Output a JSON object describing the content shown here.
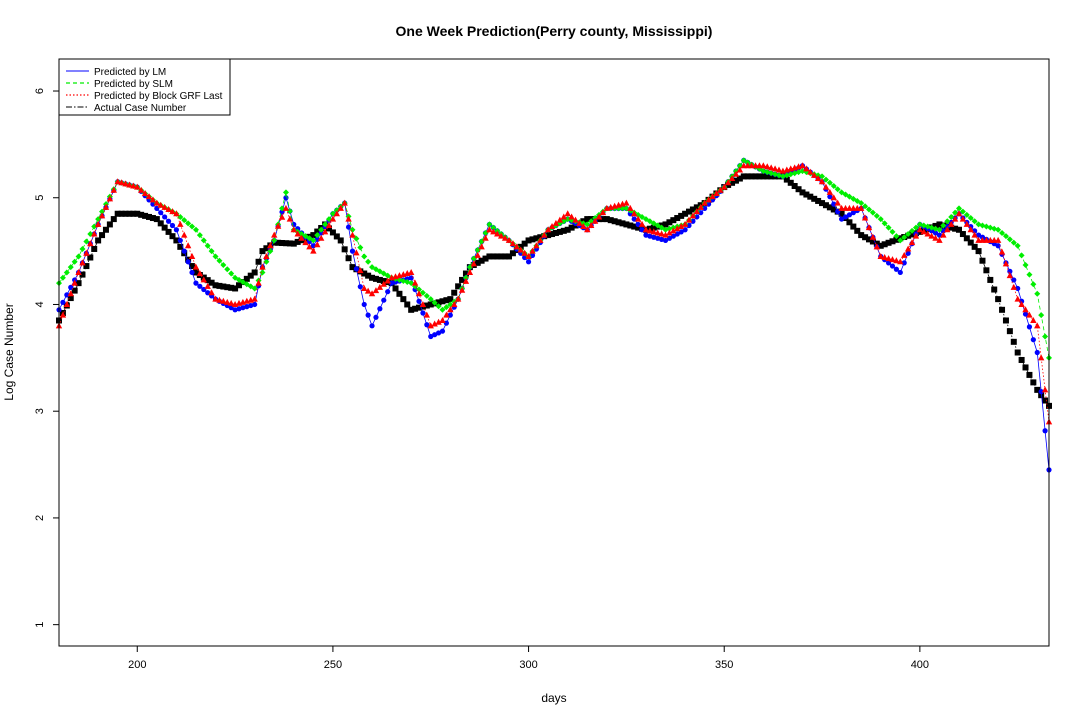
{
  "chart_data": {
    "type": "line",
    "title": "One Week Prediction(Perry county, Mississippi)",
    "xlabel": "days",
    "ylabel": "Log Case Number",
    "xlim": [
      180,
      433
    ],
    "ylim": [
      0.8,
      6.3
    ],
    "x_ticks": [
      "200",
      "250",
      "300",
      "350",
      "400"
    ],
    "y_ticks": [
      "1",
      "2",
      "3",
      "4",
      "5",
      "6"
    ],
    "grid": false,
    "legend_position": "top-left",
    "legend": [
      {
        "label": "Predicted by LM",
        "color": "#0000ff",
        "style": "solid"
      },
      {
        "label": "Predicted by SLM",
        "color": "#00ee00",
        "style": "dashed"
      },
      {
        "label": "Predicted by Block GRF Last",
        "color": "#ff0000",
        "style": "dotted"
      },
      {
        "label": "Actual Case Number",
        "color": "#000000",
        "style": "dotdash"
      }
    ],
    "series": [
      {
        "name": "Actual Case Number",
        "color": "#000000",
        "marker": "square",
        "x": [
          180,
          185,
          190,
          195,
          200,
          205,
          210,
          215,
          220,
          225,
          230,
          232,
          235,
          240,
          245,
          248,
          252,
          255,
          260,
          265,
          270,
          275,
          280,
          285,
          290,
          295,
          300,
          305,
          310,
          315,
          320,
          325,
          330,
          335,
          340,
          345,
          350,
          355,
          360,
          365,
          370,
          375,
          380,
          385,
          390,
          395,
          400,
          405,
          410,
          415,
          420,
          425,
          430,
          433
        ],
        "y": [
          3.85,
          4.2,
          4.6,
          4.85,
          4.85,
          4.8,
          4.6,
          4.3,
          4.18,
          4.15,
          4.3,
          4.5,
          4.58,
          4.57,
          4.65,
          4.75,
          4.6,
          4.35,
          4.25,
          4.2,
          3.95,
          4.0,
          4.05,
          4.35,
          4.45,
          4.45,
          4.6,
          4.65,
          4.7,
          4.8,
          4.8,
          4.75,
          4.7,
          4.75,
          4.85,
          4.95,
          5.1,
          5.2,
          5.2,
          5.2,
          5.05,
          4.95,
          4.85,
          4.65,
          4.55,
          4.62,
          4.68,
          4.75,
          4.7,
          4.5,
          4.05,
          3.55,
          3.2,
          3.05
        ]
      },
      {
        "name": "Predicted by LM",
        "color": "#0000ff",
        "marker": "circle",
        "x": [
          180,
          185,
          190,
          195,
          200,
          205,
          210,
          215,
          220,
          225,
          230,
          232,
          235,
          238,
          240,
          245,
          250,
          253,
          255,
          258,
          260,
          265,
          270,
          275,
          278,
          282,
          285,
          290,
          295,
          300,
          305,
          310,
          315,
          320,
          325,
          330,
          335,
          340,
          345,
          350,
          355,
          360,
          365,
          370,
          375,
          380,
          385,
          390,
          395,
          400,
          405,
          410,
          415,
          420,
          425,
          430,
          433
        ],
        "y": [
          3.95,
          4.3,
          4.75,
          5.15,
          5.1,
          4.9,
          4.7,
          4.2,
          4.05,
          3.95,
          4.0,
          4.35,
          4.6,
          5.0,
          4.75,
          4.55,
          4.85,
          4.95,
          4.5,
          4.0,
          3.8,
          4.2,
          4.25,
          3.7,
          3.75,
          4.05,
          4.35,
          4.75,
          4.6,
          4.4,
          4.7,
          4.8,
          4.7,
          4.9,
          4.9,
          4.65,
          4.6,
          4.7,
          4.9,
          5.1,
          5.35,
          5.25,
          5.2,
          5.3,
          5.15,
          4.8,
          4.9,
          4.45,
          4.3,
          4.75,
          4.65,
          4.85,
          4.65,
          4.55,
          4.15,
          3.55,
          2.45
        ]
      },
      {
        "name": "Predicted by SLM",
        "color": "#00ee00",
        "marker": "diamond",
        "x": [
          180,
          185,
          190,
          195,
          200,
          205,
          210,
          215,
          220,
          225,
          230,
          232,
          235,
          238,
          240,
          245,
          250,
          253,
          255,
          258,
          260,
          265,
          270,
          275,
          278,
          282,
          285,
          290,
          295,
          300,
          305,
          310,
          315,
          320,
          325,
          330,
          335,
          340,
          345,
          350,
          355,
          360,
          365,
          370,
          375,
          380,
          385,
          390,
          395,
          400,
          405,
          410,
          415,
          420,
          425,
          430,
          433
        ],
        "y": [
          4.2,
          4.45,
          4.8,
          5.15,
          5.1,
          4.95,
          4.85,
          4.7,
          4.45,
          4.25,
          4.15,
          4.3,
          4.6,
          5.05,
          4.7,
          4.6,
          4.85,
          4.95,
          4.7,
          4.45,
          4.35,
          4.25,
          4.2,
          4.05,
          3.95,
          4.05,
          4.35,
          4.75,
          4.6,
          4.45,
          4.7,
          4.8,
          4.75,
          4.9,
          4.9,
          4.8,
          4.7,
          4.75,
          4.95,
          5.1,
          5.35,
          5.25,
          5.2,
          5.25,
          5.2,
          5.05,
          4.95,
          4.8,
          4.6,
          4.75,
          4.7,
          4.9,
          4.75,
          4.7,
          4.55,
          4.1,
          3.5
        ]
      },
      {
        "name": "Predicted by Block GRF Last",
        "color": "#ff0000",
        "marker": "triangle",
        "x": [
          180,
          185,
          190,
          195,
          200,
          205,
          210,
          215,
          220,
          225,
          230,
          232,
          235,
          238,
          240,
          245,
          250,
          253,
          255,
          258,
          260,
          265,
          270,
          275,
          278,
          282,
          285,
          290,
          295,
          300,
          305,
          310,
          315,
          320,
          325,
          330,
          335,
          340,
          345,
          350,
          355,
          360,
          365,
          370,
          375,
          380,
          385,
          390,
          395,
          400,
          405,
          410,
          415,
          420,
          425,
          430,
          433
        ],
        "y": [
          3.8,
          4.3,
          4.75,
          5.15,
          5.1,
          4.95,
          4.85,
          4.35,
          4.05,
          4.0,
          4.05,
          4.35,
          4.65,
          4.9,
          4.7,
          4.5,
          4.8,
          4.95,
          4.65,
          4.15,
          4.1,
          4.25,
          4.3,
          3.8,
          3.85,
          4.05,
          4.3,
          4.7,
          4.6,
          4.45,
          4.7,
          4.85,
          4.7,
          4.9,
          4.95,
          4.7,
          4.65,
          4.75,
          4.95,
          5.1,
          5.3,
          5.3,
          5.25,
          5.3,
          5.15,
          4.9,
          4.9,
          4.45,
          4.4,
          4.7,
          4.6,
          4.85,
          4.6,
          4.6,
          4.05,
          3.8,
          2.9
        ]
      }
    ]
  }
}
